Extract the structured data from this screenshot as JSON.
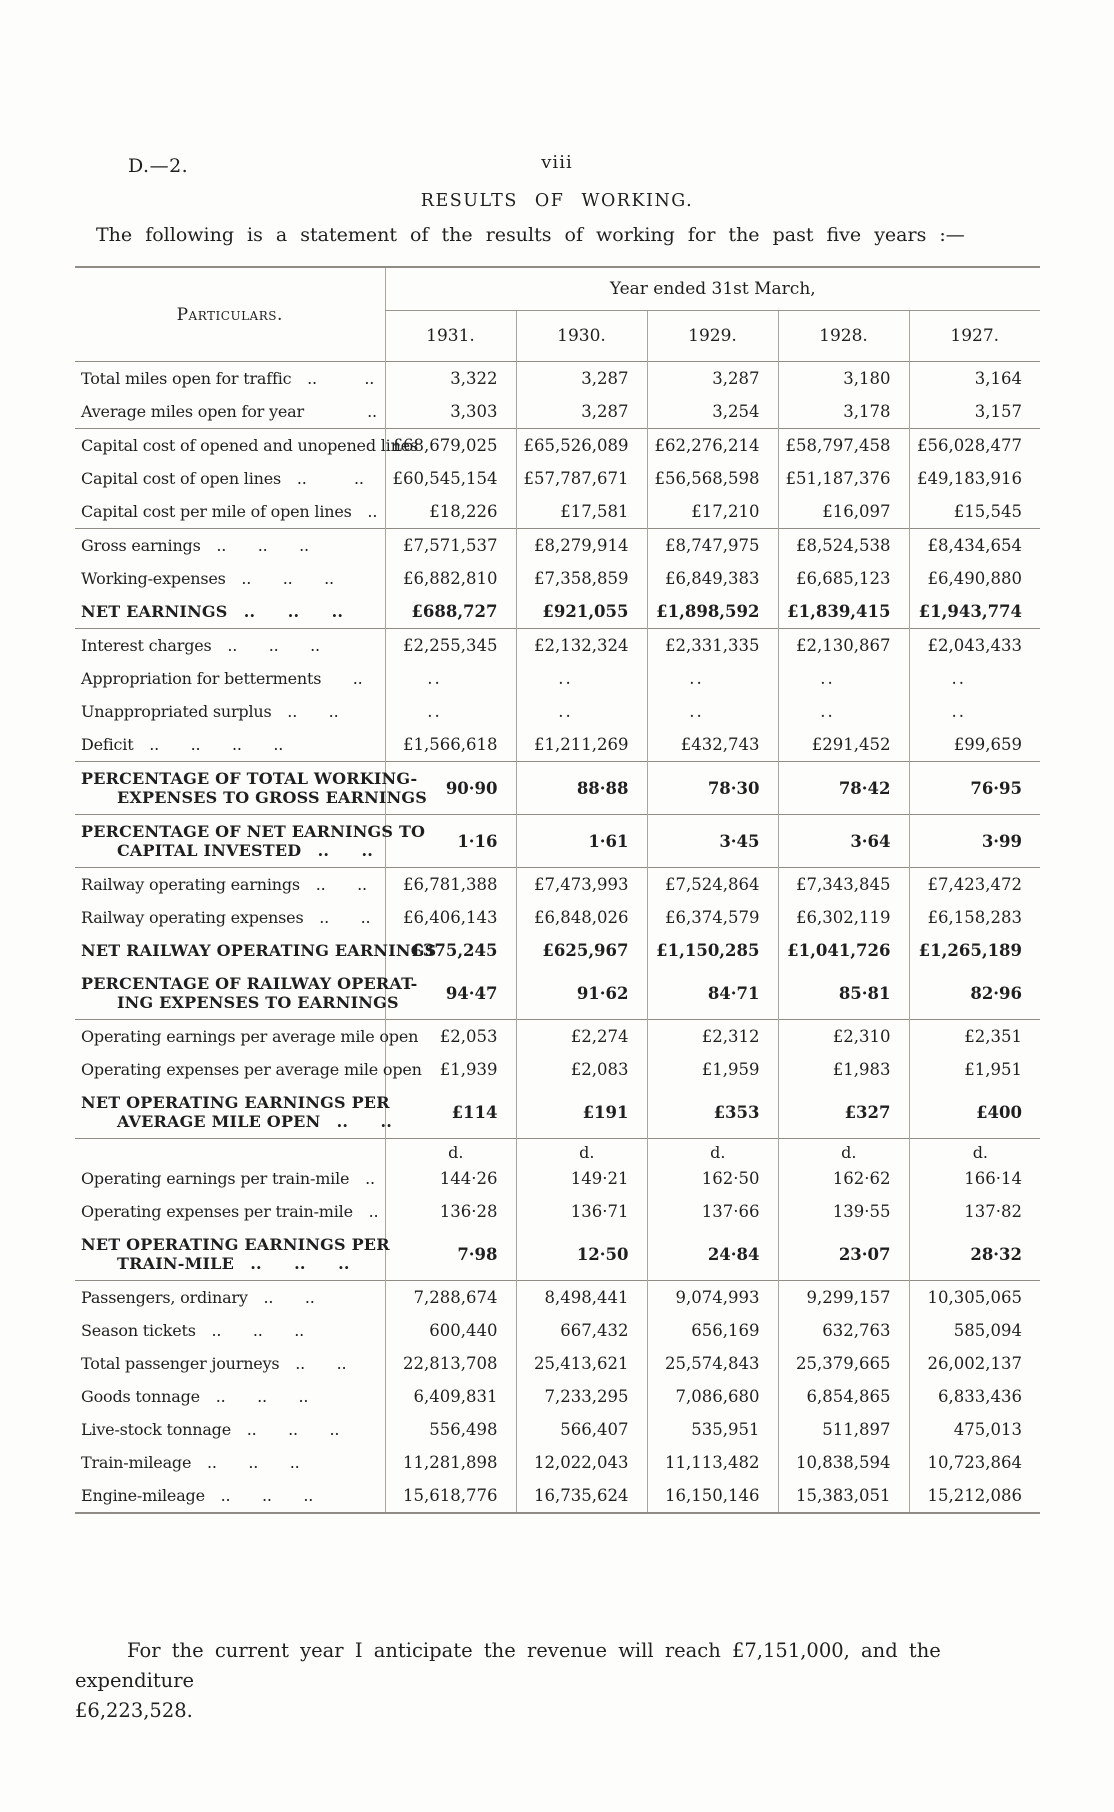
{
  "page": {
    "doc_ref": "D.—2.",
    "page_number": "viii",
    "title": "RESULTS OF WORKING.",
    "intro": "The following is a statement of the results of working for the past five years :—"
  },
  "table": {
    "col_header": "Particulars.",
    "span_header": "Year ended 31st March,",
    "years": [
      "1931.",
      "1930.",
      "1929.",
      "1928.",
      "1927."
    ],
    "groups": [
      {
        "rows": [
          {
            "label": "Total miles open for traffic ..   ..",
            "values": [
              "3,322",
              "3,287",
              "3,287",
              "3,180",
              "3,164"
            ]
          },
          {
            "label": "Average miles open for year    ..",
            "values": [
              "3,303",
              "3,287",
              "3,254",
              "3,178",
              "3,157"
            ]
          }
        ]
      },
      {
        "rows": [
          {
            "label": "Capital cost of opened and unopened lines",
            "values": [
              "£68,679,025",
              "£65,526,089",
              "£62,276,214",
              "£58,797,458",
              "£56,028,477"
            ]
          },
          {
            "label": "Capital cost of open lines ..   ..",
            "values": [
              "£60,545,154",
              "£57,787,671",
              "£56,568,598",
              "£51,187,376",
              "£49,183,916"
            ]
          },
          {
            "label": "Capital cost per mile of open lines ..",
            "values": [
              "£18,226",
              "£17,581",
              "£17,210",
              "£16,097",
              "£15,545"
            ]
          }
        ]
      },
      {
        "rows": [
          {
            "label": "Gross earnings ..  ..  ..",
            "values": [
              "£7,571,537",
              "£8,279,914",
              "£8,747,975",
              "£8,524,538",
              "£8,434,654"
            ]
          },
          {
            "label": "Working-expenses ..  ..  ..",
            "values": [
              "£6,882,810",
              "£7,358,859",
              "£6,849,383",
              "£6,685,123",
              "£6,490,880"
            ]
          },
          {
            "label": "NET EARNINGS ..  ..  ..",
            "bold": true,
            "values": [
              "£688,727",
              "£921,055",
              "£1,898,592",
              "£1,839,415",
              "£1,943,774"
            ]
          }
        ]
      },
      {
        "rows": [
          {
            "label": "Interest charges ..  ..  ..",
            "values": [
              "£2,255,345",
              "£2,132,324",
              "£2,331,335",
              "£2,130,867",
              "£2,043,433"
            ]
          },
          {
            "label": "Appropriation for betterments  ..",
            "values": [
              "..",
              "..",
              "..",
              "..",
              ".."
            ]
          },
          {
            "label": "Unappropriated surplus ..  ..",
            "values": [
              "..",
              "..",
              "..",
              "..",
              ".."
            ]
          },
          {
            "label": "Deficit ..  ..  ..  ..",
            "values": [
              "£1,566,618",
              "£1,211,269",
              "£432,743",
              "£291,452",
              "£99,659"
            ]
          }
        ]
      },
      {
        "rows": [
          {
            "label": "PERCENTAGE OF TOTAL WORKING-",
            "label2": "EXPENSES TO GROSS EARNINGS",
            "bold": true,
            "values": [
              "90·90",
              "88·88",
              "78·30",
              "78·42",
              "76·95"
            ]
          }
        ]
      },
      {
        "rows": [
          {
            "label": "PERCENTAGE OF NET EARNINGS TO",
            "label2": "CAPITAL INVESTED ..  ..",
            "bold": true,
            "values": [
              "1·16",
              "1·61",
              "3·45",
              "3·64",
              "3·99"
            ]
          }
        ]
      },
      {
        "rows": [
          {
            "label": "Railway operating earnings ..  ..",
            "values": [
              "£6,781,388",
              "£7,473,993",
              "£7,524,864",
              "£7,343,845",
              "£7,423,472"
            ]
          },
          {
            "label": "Railway operating expenses ..  ..",
            "values": [
              "£6,406,143",
              "£6,848,026",
              "£6,374,579",
              "£6,302,119",
              "£6,158,283"
            ]
          },
          {
            "label": "NET RAILWAY OPERATING EARNINGS",
            "bold": true,
            "values": [
              "£375,245",
              "£625,967",
              "£1,150,285",
              "£1,041,726",
              "£1,265,189"
            ]
          },
          {
            "label": "PERCENTAGE OF RAILWAY OPERAT-",
            "label2": "ING EXPENSES TO EARNINGS",
            "bold": true,
            "values": [
              "94·47",
              "91·62",
              "84·71",
              "85·81",
              "82·96"
            ]
          }
        ]
      },
      {
        "rows": [
          {
            "label": "Operating earnings per average mile open",
            "values": [
              "£2,053",
              "£2,274",
              "£2,312",
              "£2,310",
              "£2,351"
            ]
          },
          {
            "label": "Operating expenses per average mile open",
            "values": [
              "£1,939",
              "£2,083",
              "£1,959",
              "£1,983",
              "£1,951"
            ]
          },
          {
            "label": "NET OPERATING EARNINGS PER",
            "label2": "AVERAGE MILE OPEN ..  ..",
            "bold": true,
            "values": [
              "£114",
              "£191",
              "£353",
              "£327",
              "£400"
            ]
          }
        ]
      },
      {
        "rows": [
          {
            "label": "",
            "unit": true,
            "values": [
              "d.",
              "d.",
              "d.",
              "d.",
              "d."
            ]
          },
          {
            "label": "Operating earnings per train-mile ..",
            "values": [
              "144·26",
              "149·21",
              "162·50",
              "162·62",
              "166·14"
            ]
          },
          {
            "label": "Operating expenses per train-mile ..",
            "values": [
              "136·28",
              "136·71",
              "137·66",
              "139·55",
              "137·82"
            ]
          },
          {
            "label": "NET OPERATING EARNINGS PER",
            "label2": "TRAIN-MILE ..  ..  ..",
            "bold": true,
            "values": [
              "7·98",
              "12·50",
              "24·84",
              "23·07",
              "28·32"
            ]
          }
        ]
      },
      {
        "rows": [
          {
            "label": "Passengers, ordinary ..  ..",
            "values": [
              "7,288,674",
              "8,498,441",
              "9,074,993",
              "9,299,157",
              "10,305,065"
            ]
          },
          {
            "label": "Season tickets ..  ..  ..",
            "values": [
              "600,440",
              "667,432",
              "656,169",
              "632,763",
              "585,094"
            ]
          },
          {
            "label": "Total passenger journeys ..  ..",
            "values": [
              "22,813,708",
              "25,413,621",
              "25,574,843",
              "25,379,665",
              "26,002,137"
            ]
          },
          {
            "label": "Goods tonnage ..  ..  ..",
            "values": [
              "6,409,831",
              "7,233,295",
              "7,086,680",
              "6,854,865",
              "6,833,436"
            ]
          },
          {
            "label": "Live-stock tonnage ..  ..  ..",
            "values": [
              "556,498",
              "566,407",
              "535,951",
              "511,897",
              "475,013"
            ]
          },
          {
            "label": "Train-mileage ..  ..  ..",
            "values": [
              "11,281,898",
              "12,022,043",
              "11,113,482",
              "10,838,594",
              "10,723,864"
            ]
          },
          {
            "label": "Engine-mileage ..  ..  ..",
            "values": [
              "15,618,776",
              "16,735,624",
              "16,150,146",
              "15,383,051",
              "15,212,086"
            ]
          }
        ]
      }
    ]
  },
  "footer": {
    "line1": "For the current year I anticipate the revenue will reach £7,151,000, and the expenditure",
    "line2": "£6,223,528."
  }
}
